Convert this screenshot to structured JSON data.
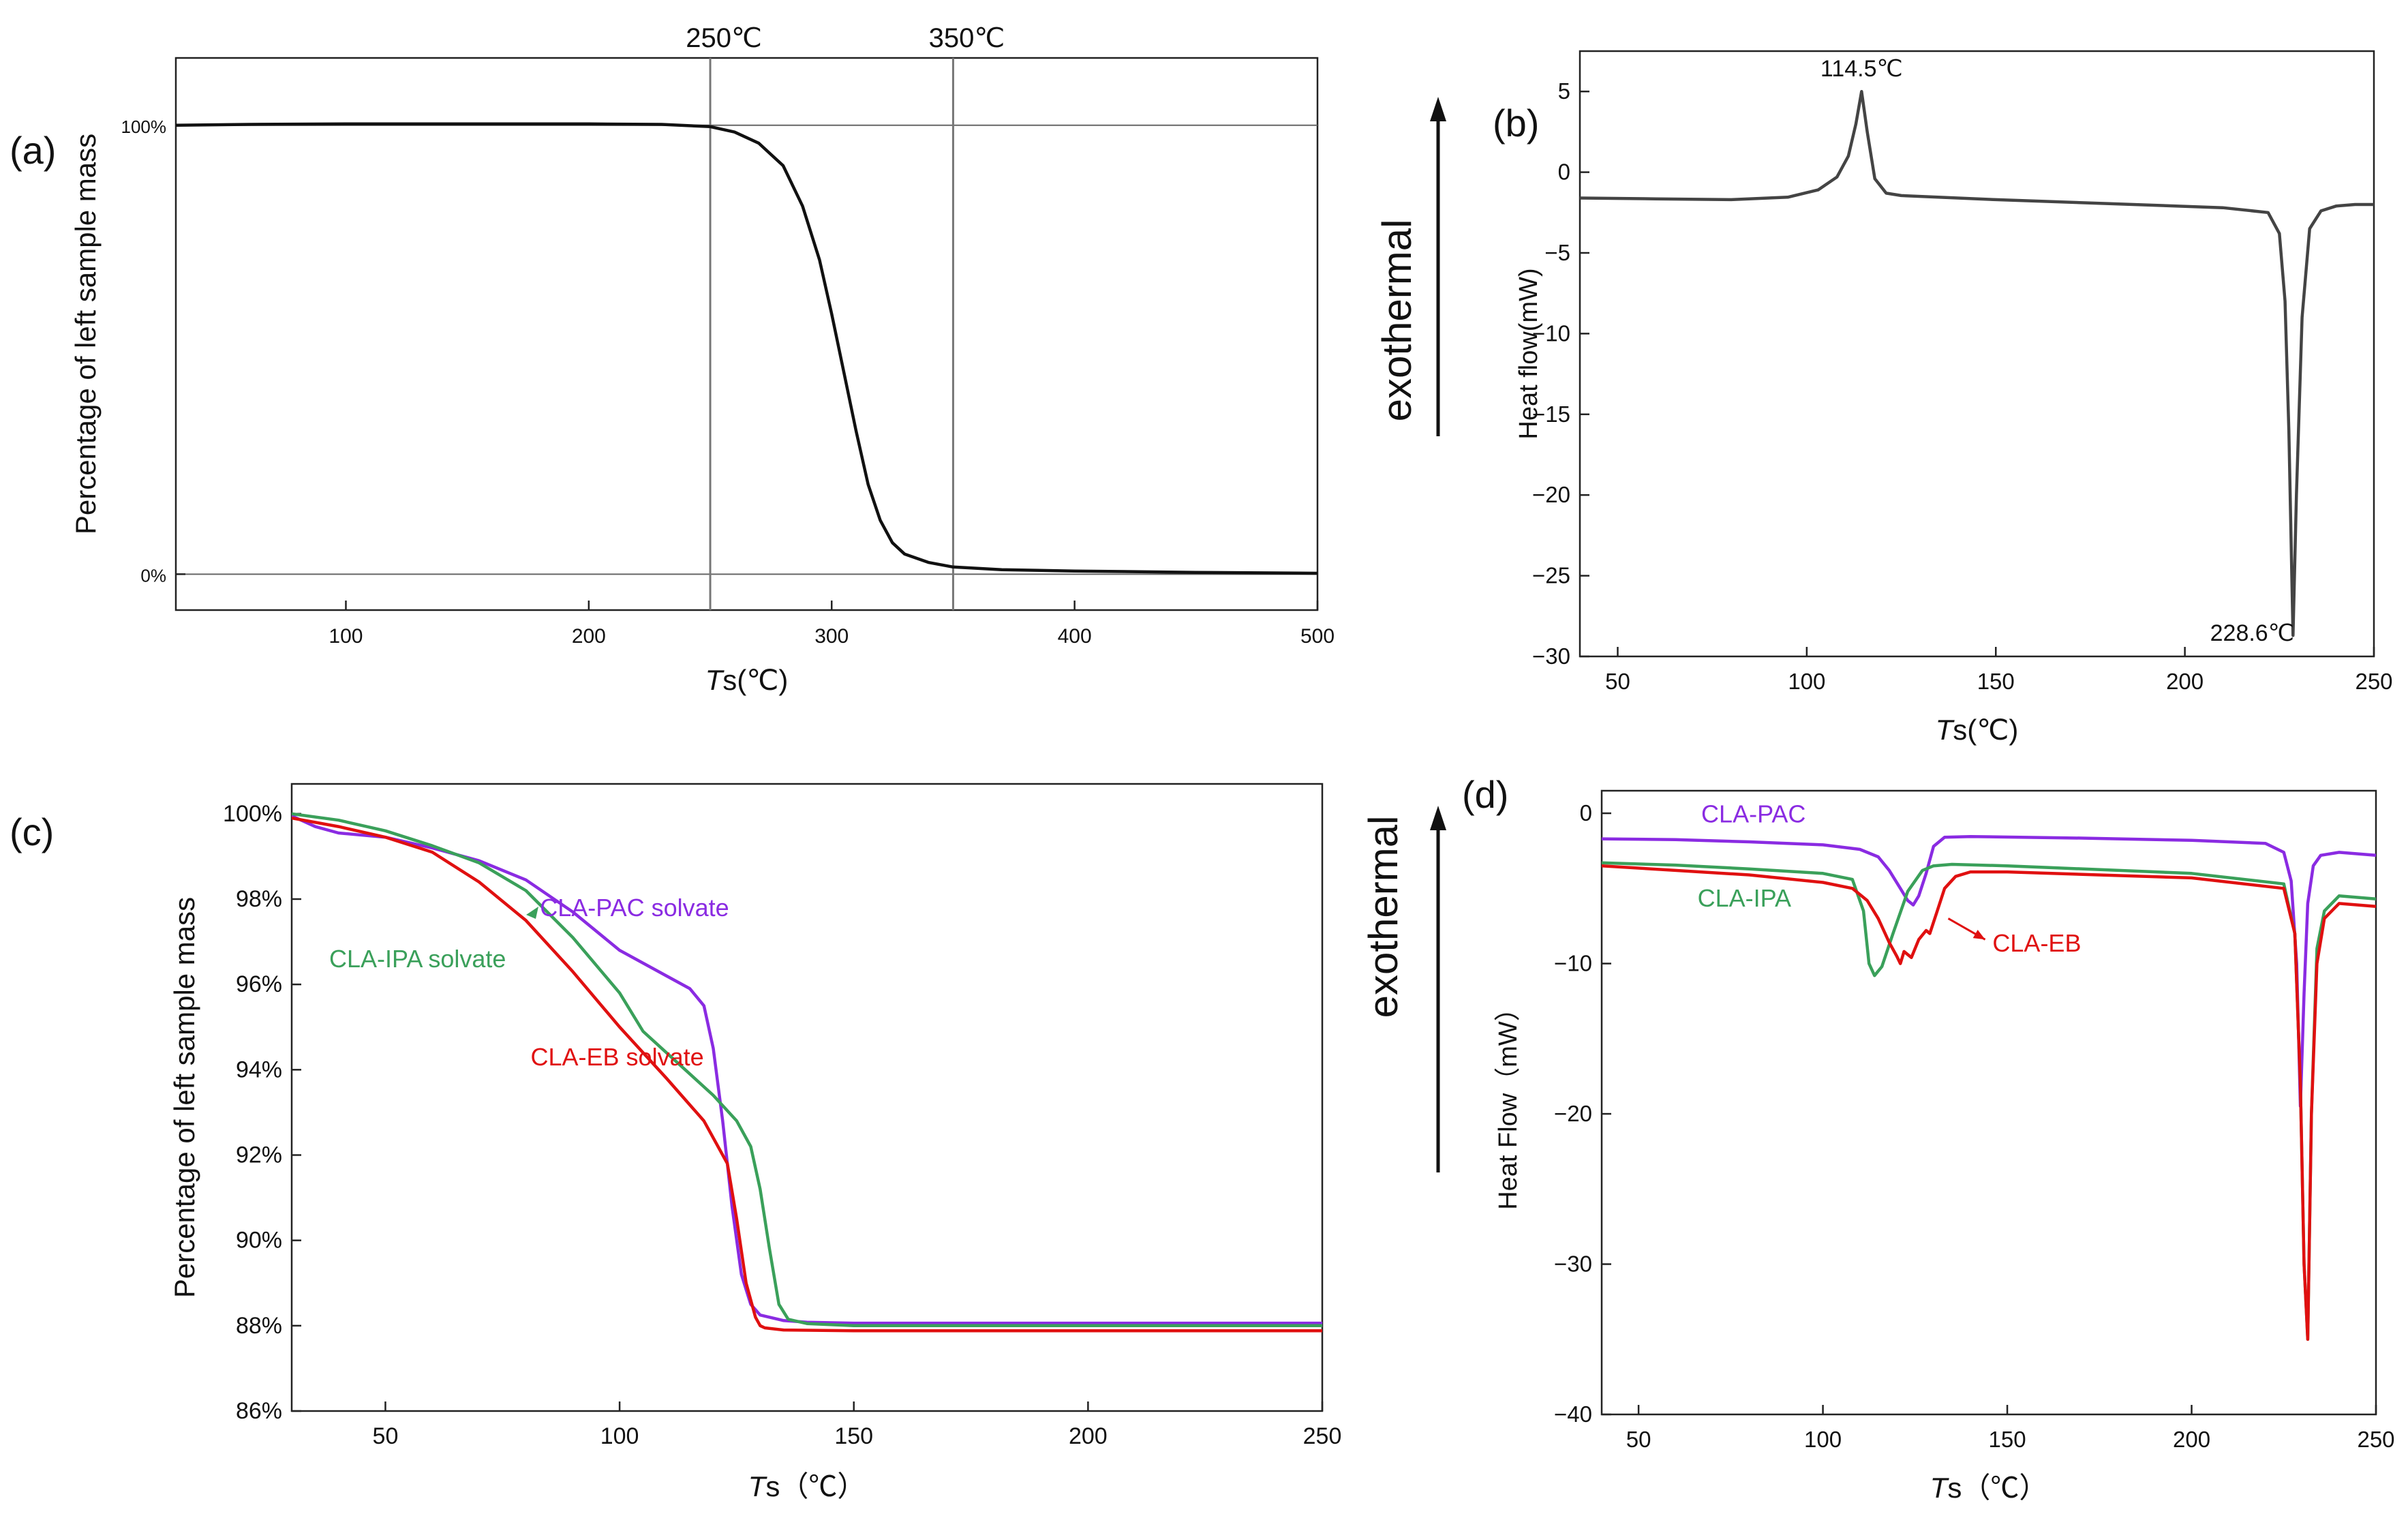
{
  "panel_labels": [
    "(a)",
    "(b)",
    "(c)",
    "(d)"
  ],
  "exothermal_label": "exothermal",
  "chart_data": [
    {
      "panel": "(a)",
      "type": "line",
      "xlabel_italic": "T",
      "xlabel_rest": "s(℃)",
      "ylabel": "Percentage of left sample mass",
      "xlim": [
        30,
        500
      ],
      "ylim": [
        -8,
        115
      ],
      "xticks": [
        100,
        200,
        300,
        400,
        500
      ],
      "yticks": [
        {
          "v": 0,
          "label": "0%"
        },
        {
          "v": 100,
          "label": "100%"
        }
      ],
      "hlines": [
        0,
        100
      ],
      "vlines": [
        {
          "x": 250,
          "label": "250℃"
        },
        {
          "x": 350,
          "label": "350℃"
        }
      ],
      "series": [
        {
          "color": "#111111",
          "x": [
            30,
            60,
            100,
            150,
            200,
            230,
            250,
            260,
            270,
            280,
            288,
            295,
            300,
            305,
            310,
            315,
            320,
            325,
            330,
            340,
            350,
            370,
            400,
            450,
            500
          ],
          "y": [
            100,
            100.2,
            100.3,
            100.3,
            100.3,
            100.2,
            99.7,
            98.5,
            96,
            91,
            82,
            70,
            58,
            45,
            32,
            20,
            12,
            7,
            4.5,
            2.6,
            1.6,
            1.0,
            0.7,
            0.4,
            0.2
          ]
        }
      ]
    },
    {
      "panel": "(b)",
      "type": "line",
      "xlabel_italic": "T",
      "xlabel_rest": "s(℃)",
      "ylabel": "Heat flow(mW)",
      "xlim": [
        40,
        250
      ],
      "ylim": [
        -30,
        7.5
      ],
      "xticks": [
        50,
        100,
        150,
        200,
        250
      ],
      "yticks": [
        {
          "v": 5,
          "label": "5"
        },
        {
          "v": 0,
          "label": "0"
        },
        {
          "v": -5,
          "label": "−5"
        },
        {
          "v": -10,
          "label": "−10"
        },
        {
          "v": -15,
          "label": "−15"
        },
        {
          "v": -20,
          "label": "−20"
        },
        {
          "v": -25,
          "label": "−25"
        },
        {
          "v": -30,
          "label": "−30"
        }
      ],
      "annotations": [
        {
          "x": 114.5,
          "y": 5,
          "label": "114.5℃"
        },
        {
          "x": 228.6,
          "y": -28.7,
          "label": "228.6℃"
        }
      ],
      "series": [
        {
          "color": "#444444",
          "x": [
            40,
            60,
            80,
            95,
            103,
            108,
            111,
            113,
            114.5,
            116,
            118,
            121,
            125,
            150,
            180,
            210,
            222,
            225,
            226.5,
            227.5,
            228.6,
            229.5,
            231,
            233,
            236,
            240,
            245,
            250
          ],
          "y": [
            -1.6,
            -1.65,
            -1.7,
            -1.55,
            -1.1,
            -0.3,
            1.0,
            3.0,
            5.0,
            2.5,
            -0.4,
            -1.3,
            -1.45,
            -1.7,
            -1.95,
            -2.2,
            -2.5,
            -3.8,
            -8,
            -16,
            -28.7,
            -20,
            -9,
            -3.5,
            -2.4,
            -2.1,
            -2.0,
            -2.0
          ]
        }
      ]
    },
    {
      "panel": "(c)",
      "type": "line",
      "xlabel_italic": "T",
      "xlabel_rest": "s（℃）",
      "ylabel": "Percentage of left sample mass",
      "xlim": [
        30,
        250
      ],
      "ylim": [
        86,
        100.7
      ],
      "xticks": [
        50,
        100,
        150,
        200,
        250
      ],
      "yticks": [
        {
          "v": 100,
          "label": "100%"
        },
        {
          "v": 98,
          "label": "98%"
        },
        {
          "v": 96,
          "label": "96%"
        },
        {
          "v": 94,
          "label": "94%"
        },
        {
          "v": 92,
          "label": "92%"
        },
        {
          "v": 90,
          "label": "90%"
        },
        {
          "v": 88,
          "label": "88%"
        },
        {
          "v": 86,
          "label": "86%"
        }
      ],
      "labels": [
        {
          "text": "CLA-PAC solvate",
          "color": "#8a2be2",
          "x": 83,
          "y": 97.6
        },
        {
          "text": "CLA-IPA solvate",
          "color": "#3aa05a",
          "x": 38,
          "y": 96.4
        },
        {
          "text": "CLA-EB solvate",
          "color": "#e01010",
          "x": 81,
          "y": 94.1
        }
      ],
      "series": [
        {
          "name": "CLA-PAC solvate",
          "color": "#8a2be2",
          "x": [
            30,
            35,
            40,
            50,
            60,
            70,
            80,
            90,
            100,
            110,
            115,
            118,
            120,
            122,
            124,
            126,
            128,
            130,
            135,
            140,
            150,
            200,
            250
          ],
          "y": [
            99.95,
            99.7,
            99.55,
            99.45,
            99.2,
            98.9,
            98.45,
            97.7,
            96.8,
            96.2,
            95.9,
            95.5,
            94.5,
            92.8,
            90.8,
            89.2,
            88.5,
            88.25,
            88.12,
            88.08,
            88.06,
            88.06,
            88.06
          ]
        },
        {
          "name": "CLA-IPA solvate",
          "color": "#3aa05a",
          "x": [
            30,
            40,
            50,
            60,
            70,
            80,
            90,
            100,
            105,
            110,
            115,
            120,
            125,
            128,
            130,
            132,
            134,
            136,
            140,
            150,
            200,
            250
          ],
          "y": [
            100,
            99.85,
            99.6,
            99.25,
            98.85,
            98.2,
            97.1,
            95.8,
            94.9,
            94.4,
            93.9,
            93.4,
            92.8,
            92.2,
            91.2,
            89.8,
            88.5,
            88.15,
            88.05,
            88.0,
            88.0,
            88.0
          ]
        },
        {
          "name": "CLA-EB solvate",
          "color": "#e01010",
          "x": [
            30,
            40,
            50,
            60,
            70,
            80,
            90,
            100,
            110,
            118,
            123,
            125,
            127,
            129,
            130,
            131,
            135,
            150,
            200,
            250
          ],
          "y": [
            99.9,
            99.7,
            99.45,
            99.1,
            98.4,
            97.5,
            96.3,
            95.0,
            93.8,
            92.8,
            91.8,
            90.5,
            89.0,
            88.2,
            88.0,
            87.95,
            87.9,
            87.88,
            87.88,
            87.88
          ]
        }
      ]
    },
    {
      "panel": "(d)",
      "type": "line",
      "xlabel_italic": "T",
      "xlabel_rest": "s（℃）",
      "ylabel": "Heat Flow（mW）",
      "xlim": [
        40,
        250
      ],
      "ylim": [
        -40,
        1.5
      ],
      "xticks": [
        50,
        100,
        150,
        200,
        250
      ],
      "yticks": [
        {
          "v": 0,
          "label": "0"
        },
        {
          "v": -10,
          "label": "−10"
        },
        {
          "v": -20,
          "label": "−20"
        },
        {
          "v": -30,
          "label": "−30"
        },
        {
          "v": -40,
          "label": "−40"
        }
      ],
      "labels": [
        {
          "text": "CLA-PAC",
          "color": "#8a2be2",
          "x": 67,
          "y": -0.6
        },
        {
          "text": "CLA-IPA",
          "color": "#3aa05a",
          "x": 66,
          "y": -6.2
        },
        {
          "text": "CLA-EB",
          "color": "#e01010",
          "x": 146,
          "y": -9.2
        }
      ],
      "arrow": {
        "color": "#e01010",
        "from": [
          134,
          -7
        ],
        "to": [
          144,
          -8.4
        ]
      },
      "series": [
        {
          "name": "CLA-PAC",
          "color": "#8a2be2",
          "x": [
            40,
            60,
            80,
            100,
            110,
            115,
            118,
            121,
            123,
            124.5,
            126,
            128,
            130,
            133,
            140,
            170,
            200,
            220,
            225,
            227,
            228.5,
            229.5,
            230.5,
            231.5,
            233,
            235,
            240,
            250
          ],
          "y": [
            -1.7,
            -1.75,
            -1.9,
            -2.1,
            -2.4,
            -2.9,
            -3.8,
            -5.0,
            -5.8,
            -6.1,
            -5.5,
            -4.0,
            -2.2,
            -1.6,
            -1.55,
            -1.65,
            -1.8,
            -2.0,
            -2.6,
            -4.5,
            -10,
            -19.5,
            -12,
            -6,
            -3.5,
            -2.8,
            -2.6,
            -2.8
          ]
        },
        {
          "name": "CLA-IPA",
          "color": "#3aa05a",
          "x": [
            40,
            60,
            80,
            100,
            108,
            111,
            112.5,
            114,
            116,
            119,
            123,
            127,
            130,
            135,
            150,
            200,
            225,
            228,
            229.5,
            230.5,
            231.5,
            232.5,
            234,
            236,
            240,
            250
          ],
          "y": [
            -3.3,
            -3.45,
            -3.7,
            -4.0,
            -4.4,
            -6.5,
            -10,
            -10.8,
            -10.2,
            -8.0,
            -5.2,
            -3.8,
            -3.5,
            -3.4,
            -3.5,
            -4.0,
            -4.7,
            -8,
            -18,
            -30,
            -35,
            -20,
            -9,
            -6.5,
            -5.5,
            -5.7
          ]
        },
        {
          "name": "CLA-EB",
          "color": "#e01010",
          "x": [
            40,
            60,
            80,
            100,
            108,
            112,
            115,
            118,
            120,
            121,
            122,
            124,
            126,
            128,
            129,
            131,
            133,
            136,
            140,
            150,
            200,
            225,
            228,
            229.5,
            230.5,
            231.5,
            232.5,
            234,
            236,
            240,
            250
          ],
          "y": [
            -3.5,
            -3.8,
            -4.1,
            -4.6,
            -5.0,
            -5.8,
            -7.0,
            -8.6,
            -9.5,
            -10.0,
            -9.2,
            -9.6,
            -8.4,
            -7.8,
            -8.0,
            -6.5,
            -5.0,
            -4.2,
            -3.9,
            -3.9,
            -4.3,
            -5.0,
            -8,
            -18,
            -30,
            -35,
            -20,
            -10,
            -7,
            -6,
            -6.2
          ]
        }
      ]
    }
  ]
}
